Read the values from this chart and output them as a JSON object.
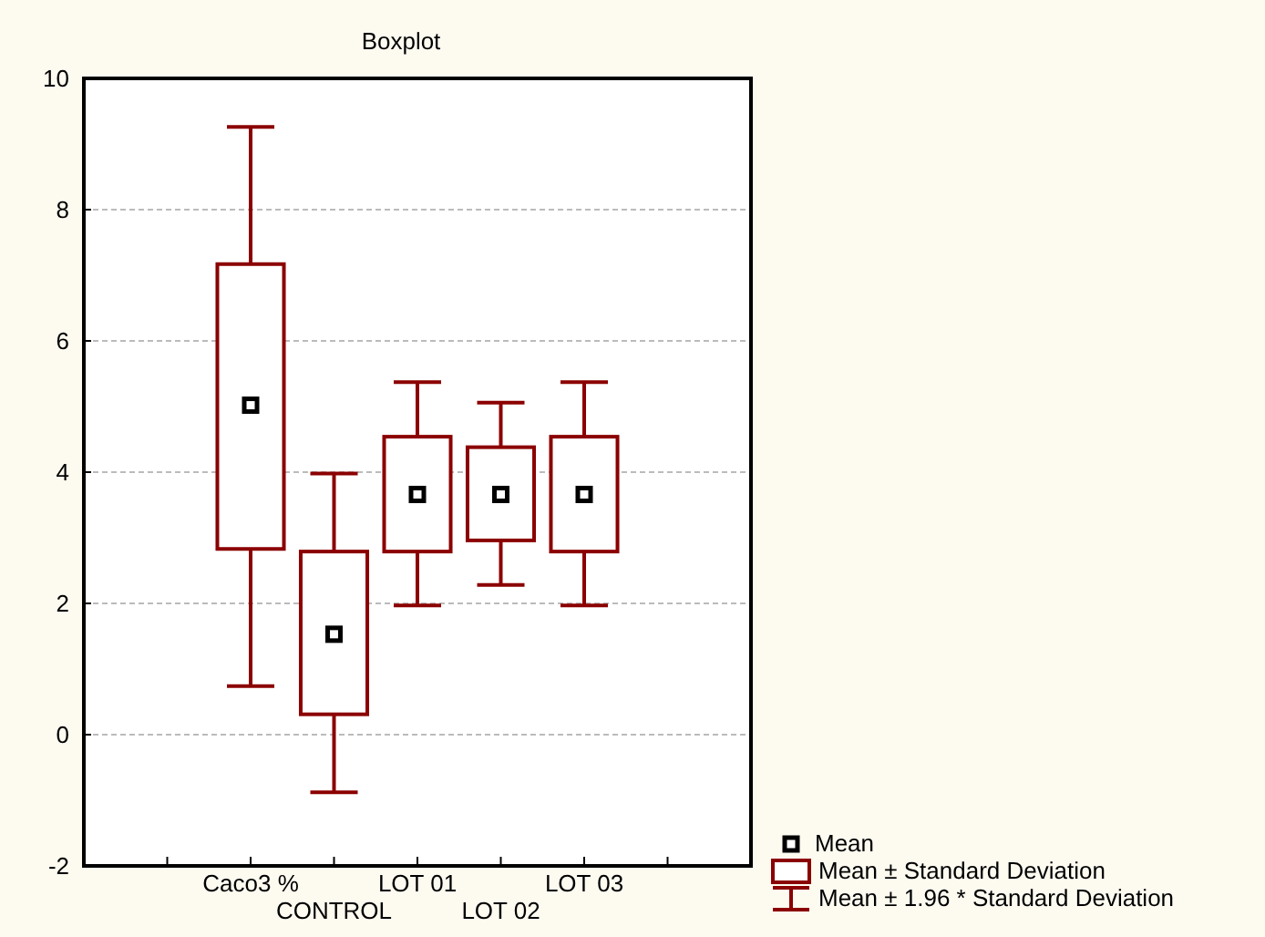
{
  "chart_data": {
    "type": "box",
    "title": "Boxplot",
    "categories": [
      "Caco3 %",
      "CONTROL",
      "LOT 01",
      "LOT 02",
      "LOT 03"
    ],
    "boxes": [
      {
        "low": 0.74,
        "q1": 2.83,
        "q3": 7.17,
        "high": 9.26,
        "mean": 5.02
      },
      {
        "low": -0.88,
        "q1": 0.31,
        "q3": 2.79,
        "high": 3.98,
        "mean": 1.53
      },
      {
        "low": 1.97,
        "q1": 2.79,
        "q3": 4.54,
        "high": 5.37,
        "mean": 3.66
      },
      {
        "low": 2.28,
        "q1": 2.96,
        "q3": 4.38,
        "high": 5.06,
        "mean": 3.66
      },
      {
        "low": 1.97,
        "q1": 2.79,
        "q3": 4.54,
        "high": 5.37,
        "mean": 3.66
      }
    ],
    "color": "#8b0000",
    "ylim": [
      -2,
      10
    ],
    "yticks": [
      -2,
      0,
      2,
      4,
      6,
      8,
      10
    ],
    "grid": "y",
    "marker": "square",
    "annotations": [
      "Mean",
      "Mean ± Standard Deviation",
      "Mean ± 1.96 * Standard Deviation"
    ]
  }
}
